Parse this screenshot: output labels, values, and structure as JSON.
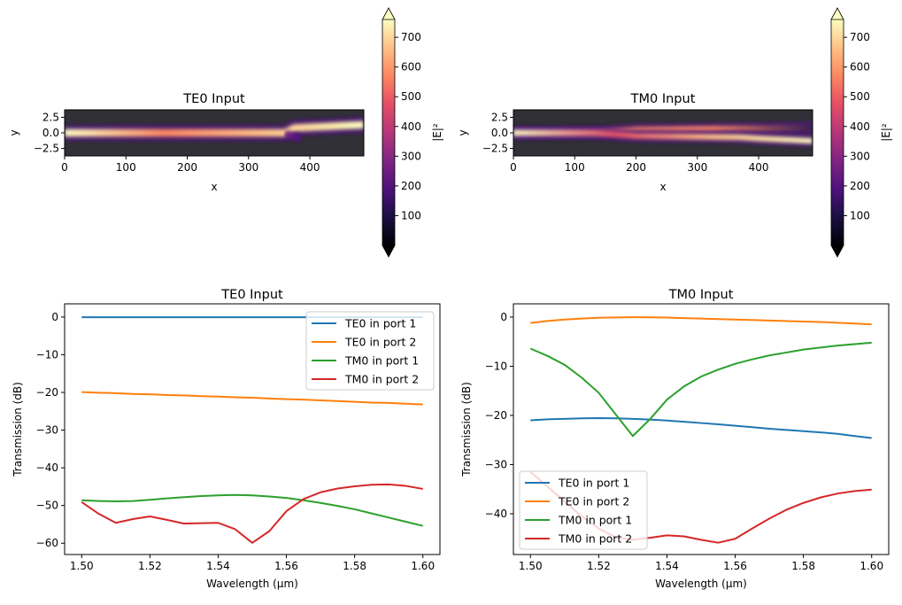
{
  "chart_data": [
    {
      "type": "heatmap",
      "title": "TE0 Input",
      "xlabel": "x",
      "ylabel": "y",
      "xticks": [
        0,
        100,
        200,
        300,
        400
      ],
      "yticks": [
        2.5,
        0.0,
        -2.5
      ],
      "xlim": [
        0,
        488
      ],
      "ylim": [
        -3.7,
        3.7
      ],
      "colormap": "magma",
      "colorbar": {
        "label": "|E|²",
        "ticks": [
          100,
          200,
          300,
          400,
          500,
          600,
          700
        ],
        "range": [
          0,
          760
        ],
        "extend": "both"
      }
    },
    {
      "type": "heatmap",
      "title": "TM0 Input",
      "xlabel": "x",
      "ylabel": "y",
      "xticks": [
        0,
        100,
        200,
        300,
        400
      ],
      "yticks": [
        2.5,
        0.0,
        -2.5
      ],
      "xlim": [
        0,
        488
      ],
      "ylim": [
        -3.7,
        3.7
      ],
      "colormap": "magma",
      "colorbar": {
        "label": "|E|²",
        "ticks": [
          100,
          200,
          300,
          400,
          500,
          600,
          700
        ],
        "range": [
          0,
          760
        ],
        "extend": "both"
      }
    },
    {
      "type": "line",
      "title": "TE0 Input",
      "xlabel": "Wavelength (µm)",
      "ylabel": "Transmission (dB)",
      "xlim": [
        1.495,
        1.605
      ],
      "ylim": [
        -63,
        3.5
      ],
      "xticks": [
        "1.50",
        "1.52",
        "1.54",
        "1.56",
        "1.58",
        "1.60"
      ],
      "yticks": [
        0,
        -10,
        -20,
        -30,
        -40,
        -50,
        -60
      ],
      "legend": "top-right",
      "x": [
        1.5,
        1.505,
        1.51,
        1.515,
        1.52,
        1.525,
        1.53,
        1.535,
        1.54,
        1.545,
        1.55,
        1.555,
        1.56,
        1.565,
        1.57,
        1.575,
        1.58,
        1.585,
        1.59,
        1.595,
        1.6
      ],
      "series": [
        {
          "name": "TE0 in port 1",
          "color": "#1f77b4",
          "values": [
            -0.05,
            -0.05,
            -0.05,
            -0.05,
            -0.05,
            -0.05,
            -0.05,
            -0.05,
            -0.05,
            -0.05,
            -0.05,
            -0.05,
            -0.05,
            -0.05,
            -0.05,
            -0.05,
            -0.05,
            -0.05,
            -0.05,
            -0.05,
            -0.05
          ]
        },
        {
          "name": "TE0 in port 2",
          "color": "#ff7f0e",
          "values": [
            -19.9,
            -20.1,
            -20.2,
            -20.4,
            -20.5,
            -20.7,
            -20.8,
            -21.0,
            -21.1,
            -21.3,
            -21.4,
            -21.6,
            -21.8,
            -21.9,
            -22.1,
            -22.3,
            -22.5,
            -22.7,
            -22.8,
            -23.0,
            -23.2
          ]
        },
        {
          "name": "TM0 in port 1",
          "color": "#2ca02c",
          "values": [
            -48.6,
            -48.8,
            -48.9,
            -48.8,
            -48.5,
            -48.1,
            -47.8,
            -47.5,
            -47.3,
            -47.2,
            -47.3,
            -47.6,
            -48.0,
            -48.6,
            -49.3,
            -50.1,
            -51.0,
            -52.1,
            -53.2,
            -54.3,
            -55.4
          ]
        },
        {
          "name": "TM0 in port 2",
          "color": "#d62728",
          "values": [
            -49.1,
            -52.2,
            -54.6,
            -53.6,
            -52.9,
            -53.8,
            -54.8,
            -54.7,
            -54.6,
            -56.3,
            -59.9,
            -56.8,
            -51.5,
            -48.3,
            -46.5,
            -45.5,
            -44.9,
            -44.5,
            -44.4,
            -44.8,
            -45.6
          ]
        }
      ]
    },
    {
      "type": "line",
      "title": "TM0 Input",
      "xlabel": "Wavelength (µm)",
      "ylabel": "Transmission (dB)",
      "xlim": [
        1.495,
        1.605
      ],
      "ylim": [
        -48.3,
        2.7
      ],
      "xticks": [
        "1.50",
        "1.52",
        "1.54",
        "1.56",
        "1.58",
        "1.60"
      ],
      "yticks": [
        0,
        -10,
        -20,
        -30,
        -40
      ],
      "legend": "bottom-left",
      "x": [
        1.5,
        1.505,
        1.51,
        1.515,
        1.52,
        1.525,
        1.53,
        1.535,
        1.54,
        1.545,
        1.55,
        1.555,
        1.56,
        1.565,
        1.57,
        1.575,
        1.58,
        1.585,
        1.59,
        1.595,
        1.6
      ],
      "series": [
        {
          "name": "TE0 in port 1",
          "color": "#1f77b4",
          "values": [
            -21.0,
            -20.8,
            -20.7,
            -20.6,
            -20.55,
            -20.6,
            -20.7,
            -20.85,
            -21.05,
            -21.3,
            -21.55,
            -21.8,
            -22.1,
            -22.4,
            -22.7,
            -22.95,
            -23.2,
            -23.45,
            -23.75,
            -24.2,
            -24.6
          ]
        },
        {
          "name": "TE0 in port 2",
          "color": "#ff7f0e",
          "values": [
            -1.2,
            -0.8,
            -0.5,
            -0.3,
            -0.15,
            -0.07,
            -0.03,
            -0.05,
            -0.1,
            -0.2,
            -0.3,
            -0.4,
            -0.5,
            -0.6,
            -0.7,
            -0.8,
            -0.9,
            -1.0,
            -1.15,
            -1.3,
            -1.5
          ]
        },
        {
          "name": "TM0 in port 1",
          "color": "#2ca02c",
          "values": [
            -6.4,
            -7.9,
            -9.7,
            -12.3,
            -15.4,
            -19.8,
            -24.2,
            -20.8,
            -16.8,
            -14.1,
            -12.1,
            -10.7,
            -9.5,
            -8.6,
            -7.8,
            -7.2,
            -6.6,
            -6.2,
            -5.8,
            -5.5,
            -5.2
          ]
        },
        {
          "name": "TM0 in port 2",
          "color": "#d62728",
          "values": [
            -31.5,
            -34.5,
            -37.5,
            -40.5,
            -43.0,
            -44.8,
            -45.3,
            -44.9,
            -44.4,
            -44.6,
            -45.3,
            -45.9,
            -45.1,
            -43.0,
            -41.0,
            -39.2,
            -37.8,
            -36.7,
            -35.9,
            -35.4,
            -35.1
          ]
        }
      ]
    }
  ]
}
